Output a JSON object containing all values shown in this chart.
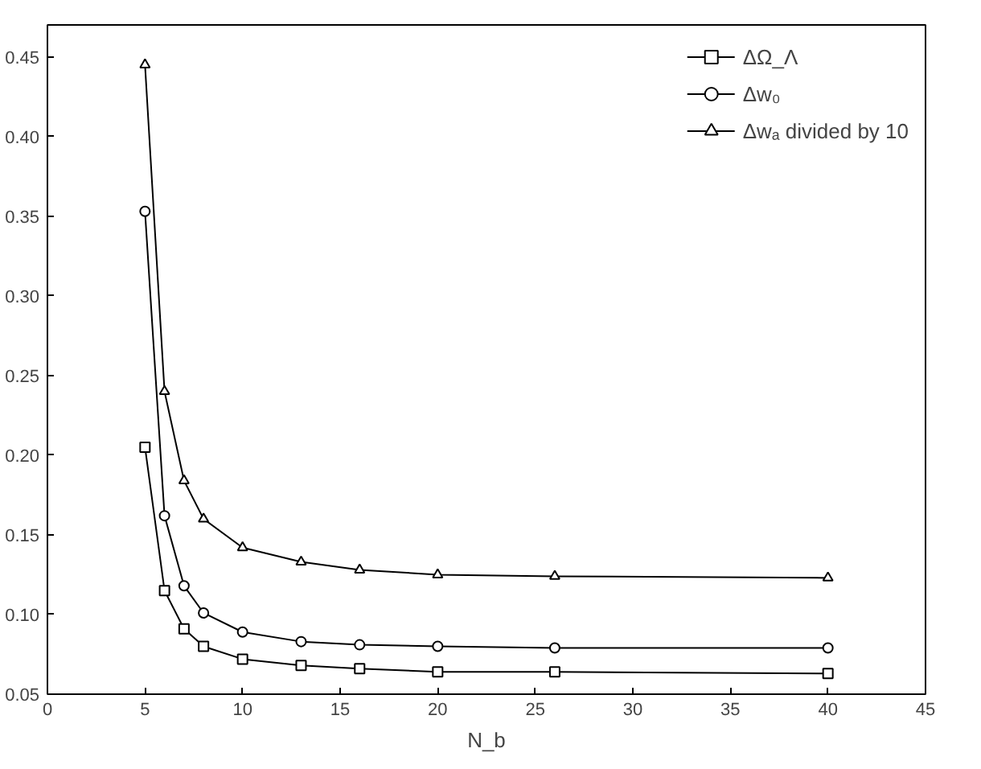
{
  "chart_data": {
    "type": "line",
    "xlabel": "N_b",
    "x": [
      5,
      6,
      7,
      8,
      10,
      13,
      16,
      20,
      26,
      40
    ],
    "series": [
      {
        "name": "ΔΩ_Λ",
        "color": "#000000",
        "marker": "square",
        "values": [
          0.205,
          0.115,
          0.091,
          0.08,
          0.072,
          0.068,
          0.066,
          0.064,
          0.064,
          0.063
        ]
      },
      {
        "name": "Δw₀",
        "color": "#000000",
        "marker": "circle",
        "values": [
          0.353,
          0.162,
          0.118,
          0.101,
          0.089,
          0.083,
          0.081,
          0.08,
          0.079,
          0.079
        ]
      },
      {
        "name": "Δwₐ divided by 10",
        "color": "#000000",
        "marker": "triangle",
        "values": [
          0.445,
          0.24,
          0.184,
          0.16,
          0.142,
          0.133,
          0.128,
          0.125,
          0.124,
          0.123
        ]
      }
    ],
    "xlim": [
      0,
      45
    ],
    "ylim": [
      0.05,
      0.47
    ],
    "xticks": [
      0,
      5,
      10,
      15,
      20,
      25,
      30,
      35,
      40,
      45
    ],
    "yticks": [
      {
        "value": 0.05,
        "label": "0.05"
      },
      {
        "value": 0.1,
        "label": "0.10"
      },
      {
        "value": 0.15,
        "label": "0.15"
      },
      {
        "value": 0.2,
        "label": "0.20"
      },
      {
        "value": 0.25,
        "label": "0.25"
      },
      {
        "value": 0.3,
        "label": "0.30"
      },
      {
        "value": 0.35,
        "label": "0.35"
      },
      {
        "value": 0.4,
        "label": "0.40"
      },
      {
        "value": 0.45,
        "label": "0.45"
      }
    ],
    "grid": false,
    "legend": "top right",
    "line_style": "solid"
  }
}
